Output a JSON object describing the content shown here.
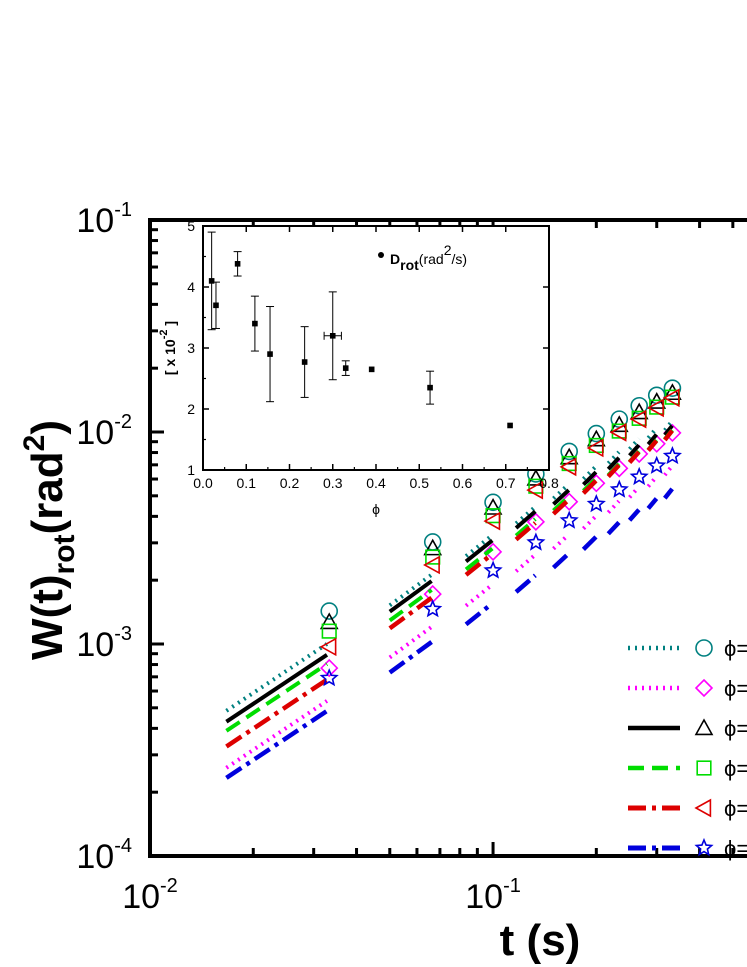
{
  "chart_data": [
    {
      "type": "scatter",
      "scale": {
        "x": "log",
        "y": "log"
      },
      "xlabel": "t (s)",
      "ylabel": "W(t)rot(rad2)",
      "xlim": [
        0.01,
        0.6
      ],
      "ylim": [
        0.0001,
        0.1
      ],
      "x_ticks": [
        {
          "base": "10",
          "exp": "-2",
          "value": 0.01
        },
        {
          "base": "10",
          "exp": "-1",
          "value": 0.1
        }
      ],
      "y_ticks": [
        {
          "base": "10",
          "exp": "-4",
          "value": 0.0001
        },
        {
          "base": "10",
          "exp": "-3",
          "value": 0.001
        },
        {
          "base": "10",
          "exp": "-2",
          "value": 0.01
        },
        {
          "base": "10",
          "exp": "-1",
          "value": 0.1
        }
      ],
      "legend_position": "bottom-right",
      "series": [
        {
          "label": "ϕ=",
          "marker": "circle",
          "line": "dotted",
          "color": "#008080",
          "x": [
            0.0333,
            0.0667,
            0.1,
            0.1333,
            0.1667,
            0.2,
            0.2333,
            0.2667,
            0.3,
            0.3333
          ],
          "y": [
            0.00143,
            0.00303,
            0.00466,
            0.00634,
            0.0081,
            0.00983,
            0.0115,
            0.0133,
            0.0149,
            0.0161
          ]
        },
        {
          "label": "ϕ=",
          "marker": "diamond",
          "line": "dotted",
          "color": "#ff00ff",
          "x": [
            0.0333,
            0.0667,
            0.1,
            0.1333,
            0.1667,
            0.2,
            0.2333,
            0.2667,
            0.3,
            0.3333
          ],
          "y": [
            0.00077,
            0.00172,
            0.00272,
            0.00377,
            0.00469,
            0.00573,
            0.00674,
            0.00788,
            0.0088,
            0.0099
          ]
        },
        {
          "label": "ϕ=",
          "marker": "triangle-up",
          "line": "solid",
          "color": "#000000",
          "x": [
            0.0333,
            0.0667,
            0.1,
            0.1333,
            0.1667,
            0.2,
            0.2333,
            0.2667,
            0.3,
            0.3333
          ],
          "y": [
            0.00127,
            0.00283,
            0.0044,
            0.00603,
            0.0076,
            0.00924,
            0.0108,
            0.0124,
            0.0139,
            0.0153
          ]
        },
        {
          "label": "ϕ=",
          "marker": "square",
          "line": "dashed",
          "color": "#00dd00",
          "x": [
            0.0333,
            0.0667,
            0.1,
            0.1333,
            0.1667,
            0.2,
            0.2333,
            0.2667,
            0.3,
            0.3333
          ],
          "y": [
            0.00115,
            0.00257,
            0.00403,
            0.00555,
            0.0071,
            0.00864,
            0.0101,
            0.0116,
            0.0131,
            0.0146
          ]
        },
        {
          "label": "ϕ=",
          "marker": "triangle-left",
          "line": "dash-dot",
          "color": "#dd0000",
          "x": [
            0.0333,
            0.0667,
            0.1,
            0.1333,
            0.1667,
            0.2,
            0.2333,
            0.2667,
            0.3,
            0.3333
          ],
          "y": [
            0.00097,
            0.00236,
            0.0038,
            0.00532,
            0.00685,
            0.00841,
            0.00996,
            0.0115,
            0.013,
            0.0145
          ]
        },
        {
          "label": "ϕ=",
          "marker": "star",
          "line": "dash-dot",
          "color": "#0000dd",
          "x": [
            0.0333,
            0.0667,
            0.1,
            0.1333,
            0.1667,
            0.2,
            0.2333,
            0.2667,
            0.3,
            0.3333
          ],
          "y": [
            0.00069,
            0.00146,
            0.00222,
            0.00301,
            0.00382,
            0.00457,
            0.00535,
            0.00614,
            0.00693,
            0.0077
          ]
        }
      ]
    },
    {
      "type": "scatter",
      "xlabel": "ϕ",
      "ylabel": "[ x 10",
      "ylabel_exp": "-2",
      "ylabel_end": " ]",
      "xlim": [
        0,
        0.8
      ],
      "ylim": [
        1,
        5
      ],
      "x_ticks": [
        "0.0",
        "0.1",
        "0.2",
        "0.3",
        "0.4",
        "0.5",
        "0.6",
        "0.7",
        "0.8"
      ],
      "y_ticks": [
        "1",
        "2",
        "3",
        "4",
        "5"
      ],
      "legend": {
        "name": "D",
        "sub": "rot",
        "units_pre": "(rad",
        "units_sup": "2",
        "units_post": "/s)"
      },
      "legend_position": "top-right",
      "series": [
        {
          "name": "Drot(rad2/s)",
          "x": [
            0.02,
            0.03,
            0.08,
            0.12,
            0.155,
            0.235,
            0.3,
            0.33,
            0.39,
            0.525,
            0.71
          ],
          "y": [
            4.1,
            3.7,
            4.38,
            3.4,
            2.9,
            2.77,
            3.2,
            2.67,
            2.65,
            2.35,
            1.73
          ],
          "y_err": [
            0.8,
            0.38,
            0.2,
            0.45,
            0.78,
            0.58,
            0.72,
            0.12,
            0.0,
            0.27,
            0.0
          ],
          "x_err": [
            0.0,
            0.0,
            0.0,
            0.0,
            0.0,
            0.0,
            0.02,
            0.0,
            0.0,
            0.0,
            0.0
          ]
        }
      ]
    }
  ]
}
